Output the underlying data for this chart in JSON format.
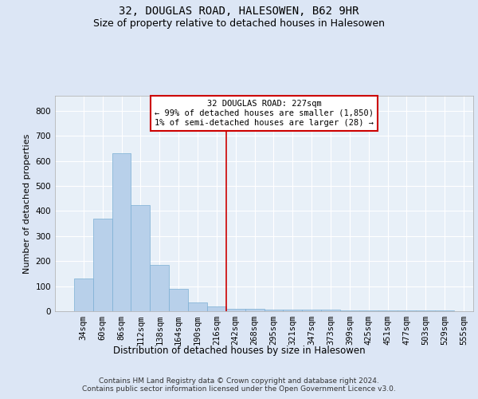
{
  "title": "32, DOUGLAS ROAD, HALESOWEN, B62 9HR",
  "subtitle": "Size of property relative to detached houses in Halesowen",
  "xlabel": "Distribution of detached houses by size in Halesowen",
  "ylabel": "Number of detached properties",
  "bin_labels": [
    "34sqm",
    "60sqm",
    "86sqm",
    "112sqm",
    "138sqm",
    "164sqm",
    "190sqm",
    "216sqm",
    "242sqm",
    "268sqm",
    "295sqm",
    "321sqm",
    "347sqm",
    "373sqm",
    "399sqm",
    "425sqm",
    "451sqm",
    "477sqm",
    "503sqm",
    "529sqm",
    "555sqm"
  ],
  "bar_heights": [
    130,
    370,
    630,
    425,
    185,
    88,
    35,
    18,
    10,
    8,
    6,
    5,
    5,
    5,
    4,
    3,
    2,
    2,
    2,
    2
  ],
  "bar_color": "#b8d0ea",
  "bar_edge_color": "#7bafd4",
  "vline_x": 7.5,
  "vline_color": "#cc0000",
  "annotation_text": "32 DOUGLAS ROAD: 227sqm\n← 99% of detached houses are smaller (1,850)\n1% of semi-detached houses are larger (28) →",
  "annotation_box_color": "#ffffff",
  "annotation_box_edge_color": "#cc0000",
  "annotation_fontsize": 7.5,
  "bg_color": "#dce6f5",
  "plot_bg_color": "#e8f0f8",
  "grid_color": "#ffffff",
  "title_fontsize": 10,
  "subtitle_fontsize": 9,
  "xlabel_fontsize": 8.5,
  "ylabel_fontsize": 8,
  "tick_fontsize": 7.5,
  "footer_text": "Contains HM Land Registry data © Crown copyright and database right 2024.\nContains public sector information licensed under the Open Government Licence v3.0.",
  "ylim": [
    0,
    860
  ],
  "yticks": [
    0,
    100,
    200,
    300,
    400,
    500,
    600,
    700,
    800
  ]
}
